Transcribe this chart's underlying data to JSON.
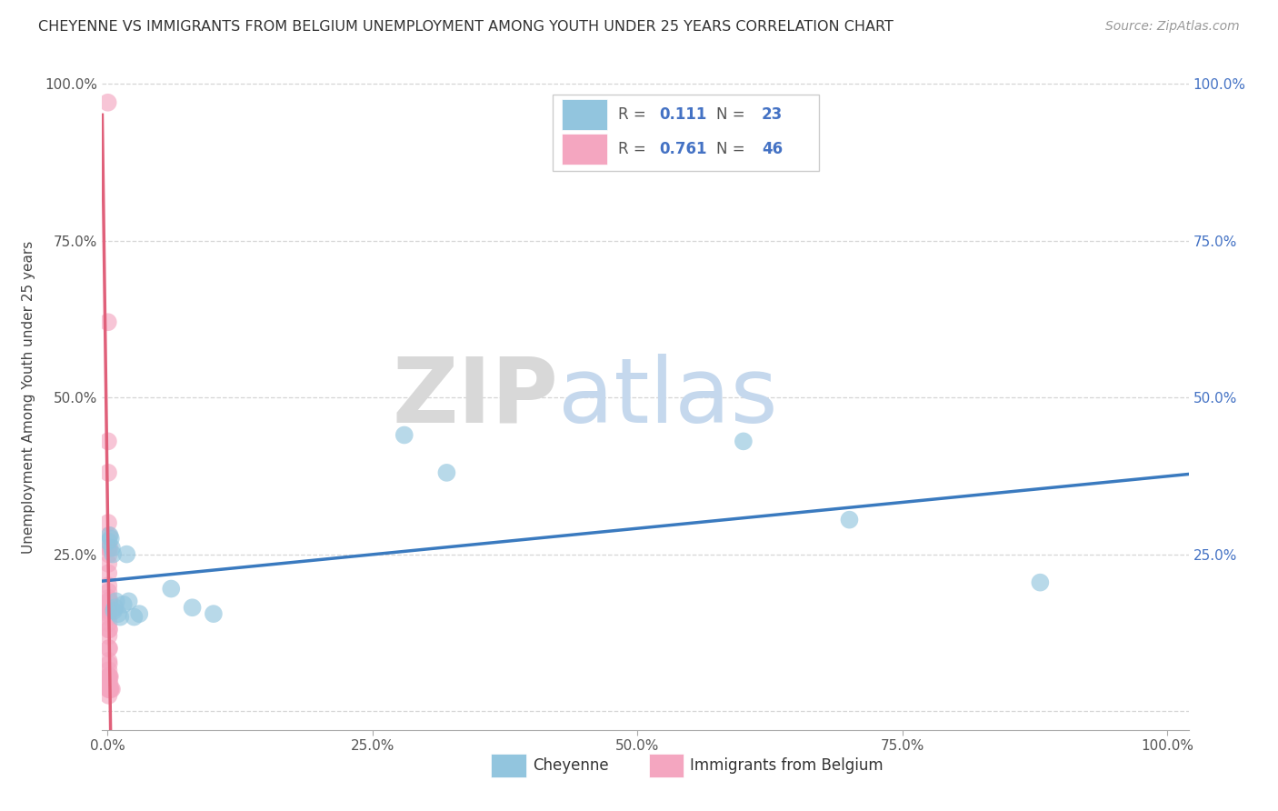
{
  "title": "CHEYENNE VS IMMIGRANTS FROM BELGIUM UNEMPLOYMENT AMONG YOUTH UNDER 25 YEARS CORRELATION CHART",
  "source": "Source: ZipAtlas.com",
  "ylabel": "Unemployment Among Youth under 25 years",
  "watermark": "ZIPatlas",
  "legend": {
    "cheyenne_R": "0.111",
    "cheyenne_N": "23",
    "belgium_R": "0.761",
    "belgium_N": "46"
  },
  "cheyenne_color": "#92c5de",
  "belgium_color": "#f4a6c0",
  "cheyenne_line_color": "#3a7abf",
  "belgium_line_color": "#e0607a",
  "cheyenne_points": [
    [
      0.001,
      0.27
    ],
    [
      0.002,
      0.28
    ],
    [
      0.003,
      0.275
    ],
    [
      0.004,
      0.26
    ],
    [
      0.005,
      0.25
    ],
    [
      0.006,
      0.16
    ],
    [
      0.007,
      0.165
    ],
    [
      0.008,
      0.175
    ],
    [
      0.01,
      0.155
    ],
    [
      0.012,
      0.15
    ],
    [
      0.015,
      0.17
    ],
    [
      0.018,
      0.25
    ],
    [
      0.02,
      0.175
    ],
    [
      0.025,
      0.15
    ],
    [
      0.03,
      0.155
    ],
    [
      0.06,
      0.195
    ],
    [
      0.08,
      0.165
    ],
    [
      0.1,
      0.155
    ],
    [
      0.28,
      0.44
    ],
    [
      0.32,
      0.38
    ],
    [
      0.6,
      0.43
    ],
    [
      0.7,
      0.305
    ],
    [
      0.88,
      0.205
    ]
  ],
  "belgium_points": [
    [
      0.0003,
      0.97
    ],
    [
      0.0004,
      0.62
    ],
    [
      0.0005,
      0.43
    ],
    [
      0.0006,
      0.38
    ],
    [
      0.0006,
      0.3
    ],
    [
      0.0007,
      0.26
    ],
    [
      0.0008,
      0.235
    ],
    [
      0.0008,
      0.22
    ],
    [
      0.0008,
      0.2
    ],
    [
      0.0009,
      0.19
    ],
    [
      0.001,
      0.18
    ],
    [
      0.001,
      0.175
    ],
    [
      0.001,
      0.17
    ],
    [
      0.001,
      0.165
    ],
    [
      0.001,
      0.16
    ],
    [
      0.001,
      0.155
    ],
    [
      0.001,
      0.15
    ],
    [
      0.001,
      0.14
    ],
    [
      0.001,
      0.13
    ],
    [
      0.001,
      0.12
    ],
    [
      0.001,
      0.1
    ],
    [
      0.001,
      0.08
    ],
    [
      0.001,
      0.065
    ],
    [
      0.001,
      0.055
    ],
    [
      0.001,
      0.045
    ],
    [
      0.001,
      0.035
    ],
    [
      0.001,
      0.025
    ],
    [
      0.0012,
      0.28
    ],
    [
      0.0012,
      0.25
    ],
    [
      0.0012,
      0.175
    ],
    [
      0.0012,
      0.16
    ],
    [
      0.0012,
      0.075
    ],
    [
      0.0012,
      0.055
    ],
    [
      0.0012,
      0.035
    ],
    [
      0.0015,
      0.13
    ],
    [
      0.0015,
      0.1
    ],
    [
      0.0015,
      0.055
    ],
    [
      0.0015,
      0.035
    ],
    [
      0.0018,
      0.26
    ],
    [
      0.0018,
      0.045
    ],
    [
      0.002,
      0.175
    ],
    [
      0.002,
      0.035
    ],
    [
      0.0022,
      0.055
    ],
    [
      0.0025,
      0.035
    ],
    [
      0.003,
      0.035
    ],
    [
      0.004,
      0.035
    ]
  ],
  "xlim": [
    -0.005,
    1.02
  ],
  "ylim": [
    -0.03,
    1.03
  ],
  "xticks": [
    0.0,
    0.25,
    0.5,
    0.75,
    1.0
  ],
  "xtick_labels": [
    "0.0%",
    "25.0%",
    "50.0%",
    "75.0%",
    "100.0%"
  ],
  "yticks": [
    0.0,
    0.25,
    0.5,
    0.75,
    1.0
  ],
  "ytick_labels": [
    "",
    "25.0%",
    "50.0%",
    "75.0%",
    "100.0%"
  ]
}
